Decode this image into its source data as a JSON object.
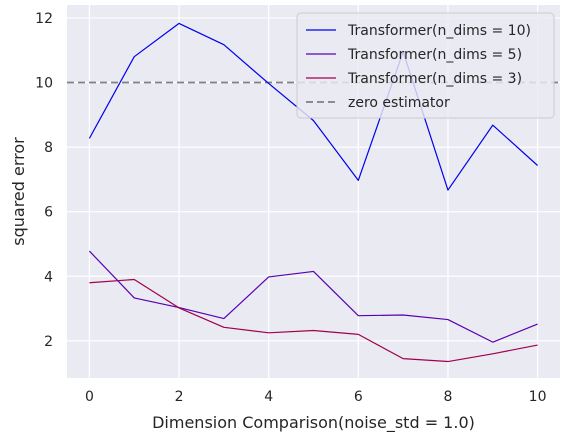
{
  "chart_data": {
    "type": "line",
    "title": "",
    "xlabel": "Dimension Comparison(noise_std = 1.0)",
    "ylabel": "squared error",
    "x": [
      0,
      1,
      2,
      3,
      4,
      5,
      6,
      7,
      8,
      9,
      10
    ],
    "xlim": [
      -0.5,
      10.5
    ],
    "ylim": [
      0.85,
      12.4
    ],
    "xticks": [
      0,
      2,
      4,
      6,
      8,
      10
    ],
    "yticks": [
      2,
      4,
      6,
      8,
      10,
      12
    ],
    "grid": true,
    "legend_position": "top-right",
    "series": [
      {
        "name": "Transformer(n_dims = 10)",
        "color": "#0000ee",
        "values": [
          8.27,
          10.8,
          11.83,
          11.17,
          9.97,
          8.82,
          6.97,
          10.95,
          6.67,
          8.68,
          7.43
        ]
      },
      {
        "name": "Transformer(n_dims = 5)",
        "color": "#5a00b4",
        "values": [
          4.78,
          3.33,
          3.03,
          2.69,
          3.98,
          4.15,
          2.78,
          2.8,
          2.66,
          1.96,
          2.52
        ]
      },
      {
        "name": "Transformer(n_dims = 3)",
        "color": "#a0004c",
        "values": [
          3.8,
          3.9,
          3.02,
          2.42,
          2.25,
          2.32,
          2.2,
          1.45,
          1.36,
          1.6,
          1.87
        ]
      }
    ],
    "reference_line": {
      "name": "zero estimator",
      "y": 10,
      "color": "#808080",
      "style": "dashed"
    }
  }
}
